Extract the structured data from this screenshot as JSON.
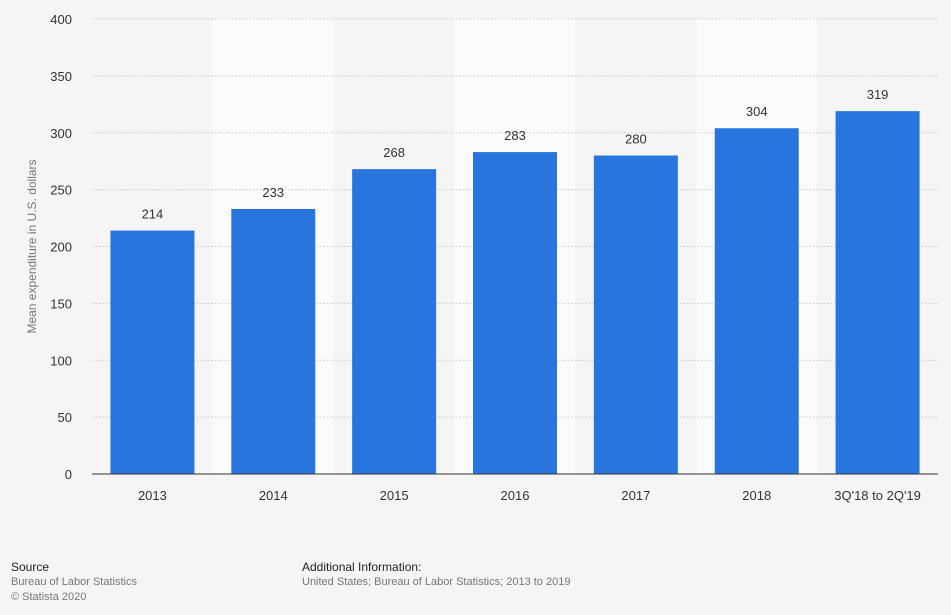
{
  "chart_data": {
    "type": "bar",
    "ylabel": "Mean expenditure in U.S. dollars",
    "xlabel": "",
    "categories": [
      "2013",
      "2014",
      "2015",
      "2016",
      "2017",
      "2018",
      "3Q'18 to 2Q'19"
    ],
    "values": [
      214,
      233,
      268,
      283,
      280,
      304,
      319
    ],
    "ylim": [
      0,
      400
    ],
    "yticks": [
      0,
      50,
      100,
      150,
      200,
      250,
      300,
      350,
      400
    ],
    "grid": true,
    "bar_color": "#2876dd",
    "label_color": "#333333"
  },
  "footer": {
    "source_heading": "Source",
    "source_text": "Bureau of Labor Statistics",
    "copyright": "© Statista 2020",
    "info_heading": "Additional Information:",
    "info_text": "United States; Bureau of Labor Statistics; 2013 to 2019"
  }
}
